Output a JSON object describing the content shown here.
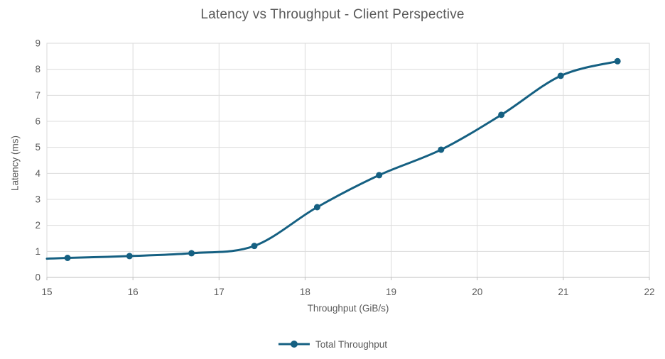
{
  "colors": {
    "series": "#156082",
    "text": "#595959",
    "gridline": "#DCDCDC",
    "plot_border": "#D9D9D9",
    "axis_line": "#BFBFBF",
    "background": "#FFFFFF"
  },
  "chart_data": {
    "type": "line",
    "title": "Latency vs Throughput - Client Perspective",
    "xlabel": "Throughput (GiB/s)",
    "ylabel": "Latency (ms)",
    "xlim": [
      15,
      22
    ],
    "ylim": [
      0,
      9
    ],
    "x_ticks": [
      15,
      16,
      17,
      18,
      19,
      20,
      21,
      22
    ],
    "y_ticks": [
      0,
      1,
      2,
      3,
      4,
      5,
      6,
      7,
      8,
      9
    ],
    "grid": true,
    "legend_position": "bottom",
    "series": [
      {
        "name": "Total Throughput",
        "color": "#156082",
        "smooth": true,
        "marker": "circle",
        "points": [
          {
            "x": 15.0,
            "y": 0.72,
            "marker": false
          },
          {
            "x": 15.24,
            "y": 0.75
          },
          {
            "x": 15.96,
            "y": 0.82
          },
          {
            "x": 16.68,
            "y": 0.93
          },
          {
            "x": 17.41,
            "y": 1.21
          },
          {
            "x": 18.14,
            "y": 2.7
          },
          {
            "x": 18.86,
            "y": 3.93
          },
          {
            "x": 19.58,
            "y": 4.91
          },
          {
            "x": 20.28,
            "y": 6.25
          },
          {
            "x": 20.97,
            "y": 7.75
          },
          {
            "x": 21.63,
            "y": 8.31
          }
        ]
      }
    ]
  }
}
